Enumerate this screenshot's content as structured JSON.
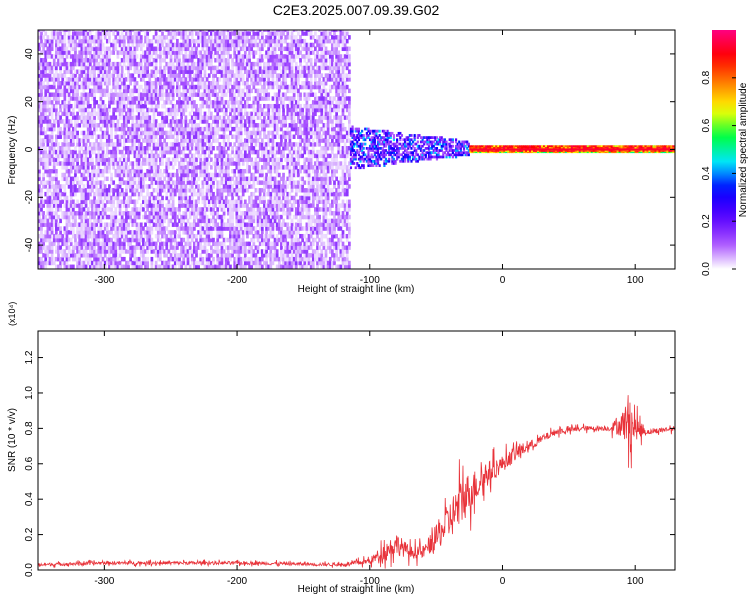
{
  "page": {
    "title": "C2E3.2025.007.09.39.G02"
  },
  "chart_data": [
    {
      "type": "heatmap",
      "xlabel": "Height of straight line (km)",
      "ylabel": "Frequency (Hz)",
      "xlim": [
        -350,
        130
      ],
      "ylim": [
        -50,
        50
      ],
      "x_ticks": [
        -300,
        -200,
        -100,
        0,
        100
      ],
      "y_ticks": [
        -40,
        -20,
        0,
        20,
        40
      ],
      "colorbar": {
        "label": "Normalized spectral amplitude",
        "range": [
          0.0,
          1.0
        ],
        "ticks": [
          0.0,
          0.2,
          0.4,
          0.6,
          0.8
        ],
        "colormap": [
          "#ffffff",
          "#a64dff",
          "#5500ff",
          "#0000ff",
          "#00e5ff",
          "#00ff40",
          "#ffff00",
          "#ff8000",
          "#ff0000",
          "#ff0080"
        ]
      },
      "regions": [
        {
          "x_range": [
            -350,
            -115
          ],
          "freq_range": [
            -50,
            50
          ],
          "amplitude": [
            0.02,
            0.15
          ]
        },
        {
          "x_range": [
            -115,
            -25
          ],
          "freq_range": [
            -10,
            10
          ],
          "amplitude": [
            0.1,
            0.45
          ]
        },
        {
          "x_range": [
            -25,
            130
          ],
          "freq_range": [
            -1.5,
            1.5
          ],
          "amplitude": [
            0.6,
            0.95
          ]
        }
      ],
      "grid": false
    },
    {
      "type": "line",
      "xlabel": "Height of straight line (km)",
      "ylabel": "SNR (10 * v/v)",
      "y_multiplier": "(x10⁴)",
      "xlim": [
        -350,
        130
      ],
      "ylim": [
        0,
        1.35
      ],
      "x_ticks": [
        -300,
        -200,
        -100,
        0,
        100
      ],
      "y_ticks": [
        0.0,
        0.2,
        0.4,
        0.6,
        0.8,
        1.0,
        1.2
      ],
      "series": [
        {
          "color": "#e8333a",
          "x": [
            -350,
            -300,
            -200,
            -120,
            -100,
            -90,
            -80,
            -70,
            -60,
            -50,
            -40,
            -30,
            -20,
            -10,
            0,
            10,
            20,
            30,
            40,
            60,
            80,
            90,
            95,
            100,
            110,
            130
          ],
          "values": [
            0.03,
            0.04,
            0.04,
            0.03,
            0.05,
            0.1,
            0.15,
            0.1,
            0.1,
            0.18,
            0.28,
            0.4,
            0.48,
            0.55,
            0.6,
            0.66,
            0.7,
            0.74,
            0.78,
            0.8,
            0.8,
            0.82,
            0.85,
            0.8,
            0.78,
            0.8
          ],
          "noise": [
            0.02,
            0.02,
            0.02,
            0.02,
            0.04,
            0.1,
            0.14,
            0.08,
            0.08,
            0.15,
            0.25,
            0.3,
            0.2,
            0.15,
            0.1,
            0.1,
            0.06,
            0.05,
            0.04,
            0.03,
            0.03,
            0.15,
            0.35,
            0.15,
            0.03,
            0.03
          ]
        }
      ],
      "grid": false
    }
  ]
}
